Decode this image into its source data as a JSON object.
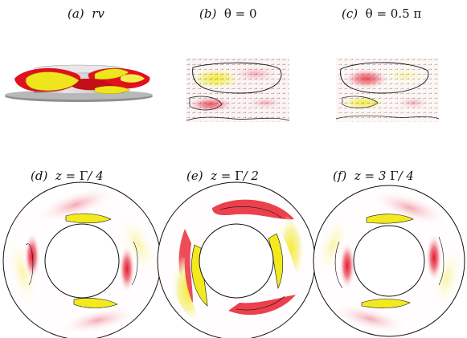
{
  "figure": {
    "panels": [
      {
        "id": "a",
        "label": "(a)",
        "caption": "rv"
      },
      {
        "id": "b",
        "label": "(b)",
        "caption_sym": "θ",
        "caption_rest": " = 0"
      },
      {
        "id": "c",
        "label": "(c)",
        "caption_sym": "θ",
        "caption_rest": " = 0.5 π"
      },
      {
        "id": "d",
        "label": "(d)",
        "caption_pre": "z = ",
        "caption_sym": "Γ",
        "caption_rest": "/ 4"
      },
      {
        "id": "e",
        "label": "(e)",
        "caption_pre": "z = ",
        "caption_sym": "Γ",
        "caption_rest": "/ 2"
      },
      {
        "id": "f",
        "label": "(f)",
        "caption_pre": "z = 3 ",
        "caption_sym": "Γ",
        "caption_rest": "/ 4"
      }
    ],
    "colors": {
      "positive": "#e8102a",
      "negative": "#f2ea1e",
      "contour": "#1a1a1a",
      "disk": "#9a9a9a"
    }
  }
}
